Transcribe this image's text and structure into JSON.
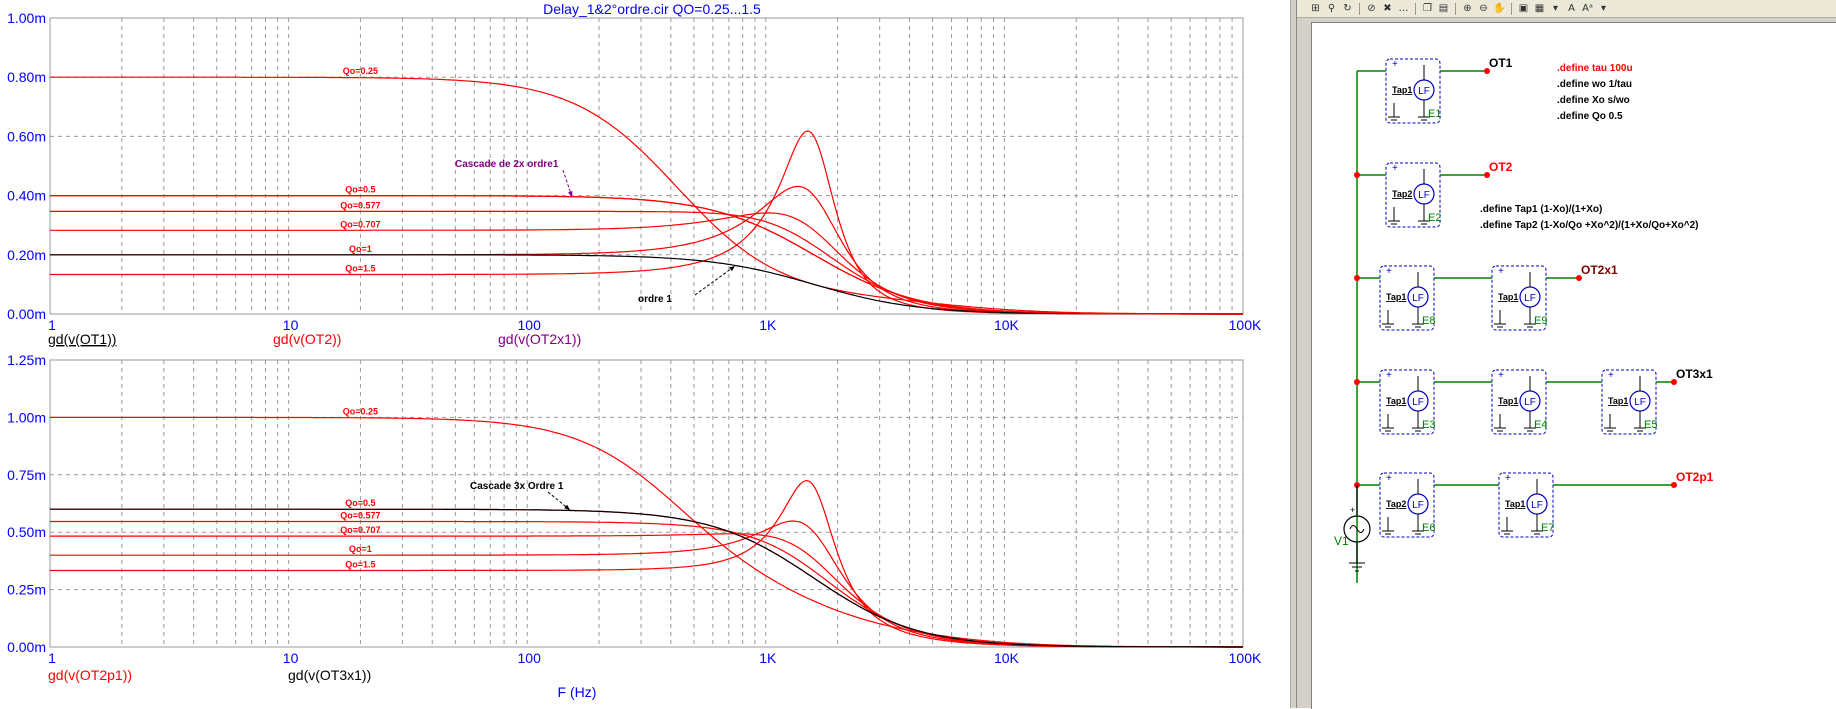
{
  "window": {
    "plot_title": "Delay_1&2°ordre.cir QO=0.25...1.5"
  },
  "colors": {
    "axis_text": "#0000ff",
    "trace_red": "#ff0000",
    "trace_black": "#000000",
    "annotation_purple": "#800080",
    "wire_green": "#008000",
    "subckt_blue": "#0000c0"
  },
  "plot_panes": {
    "top_traces": [
      "gd(v(OT1))",
      "gd(v(OT2))",
      "gd(v(OT2x1))"
    ],
    "bottom_traces": [
      "gd(v(OT2p1))",
      "gd(v(OT3x1))"
    ],
    "x_axis_label": "F (Hz)"
  },
  "chart_data": [
    {
      "type": "line",
      "title": "Delay_1&2°ordre.cir QO=0.25...1.5",
      "x_scale": "log",
      "xlim": [
        1,
        100000
      ],
      "ylim": [
        0,
        0.001
      ],
      "y_unit": "s",
      "x_ticks": [
        "1",
        "10",
        "100",
        "1K",
        "10K",
        "100K"
      ],
      "y_ticks": [
        "0.00m",
        "0.20m",
        "0.40m",
        "0.60m",
        "0.80m",
        "1.00m"
      ],
      "legend": [
        "gd(v(OT1))",
        "gd(v(OT2))",
        "gd(v(OT2x1))"
      ],
      "curves": [
        {
          "label": "Qo=0.25",
          "kind": "second-order",
          "tau": 0.0001,
          "Q": 0.25,
          "n": 1
        },
        {
          "label": "Qo=0.5",
          "kind": "second-order",
          "tau": 0.0001,
          "Q": 0.5,
          "n": 1
        },
        {
          "label": "Qo=0.577",
          "kind": "second-order",
          "tau": 0.0001,
          "Q": 0.577,
          "n": 1
        },
        {
          "label": "Qo=0.707",
          "kind": "second-order",
          "tau": 0.0001,
          "Q": 0.707,
          "n": 1
        },
        {
          "label": "Qo=1",
          "kind": "second-order",
          "tau": 0.0001,
          "Q": 1,
          "n": 1
        },
        {
          "label": "Qo=1.5",
          "kind": "second-order",
          "tau": 0.0001,
          "Q": 1.5,
          "n": 1
        },
        {
          "label": "ordre 1",
          "kind": "first-order",
          "tau": 0.0001,
          "n": 1,
          "color": "black"
        },
        {
          "label": "Cascade de 2x ordre1",
          "kind": "first-order",
          "tau": 0.0001,
          "n": 2,
          "color": "red"
        }
      ],
      "annotations": [
        "Cascade de 2x ordre1",
        "ordre 1"
      ]
    },
    {
      "type": "line",
      "x_scale": "log",
      "xlim": [
        1,
        100000
      ],
      "ylim": [
        0,
        0.00125
      ],
      "y_unit": "s",
      "x_ticks": [
        "1",
        "10",
        "100",
        "1K",
        "10K",
        "100K"
      ],
      "y_ticks": [
        "0.00m",
        "0.25m",
        "0.50m",
        "0.75m",
        "1.00m",
        "1.25m"
      ],
      "xlabel": "F (Hz)",
      "legend": [
        "gd(v(OT2p1))",
        "gd(v(OT3x1))"
      ],
      "curves": [
        {
          "label": "Qo=0.25",
          "kind": "second-plus-first",
          "tau": 0.0001,
          "Q": 0.25
        },
        {
          "label": "Qo=0.5",
          "kind": "second-plus-first",
          "tau": 0.0001,
          "Q": 0.5
        },
        {
          "label": "Qo=0.577",
          "kind": "second-plus-first",
          "tau": 0.0001,
          "Q": 0.577
        },
        {
          "label": "Qo=0.707",
          "kind": "second-plus-first",
          "tau": 0.0001,
          "Q": 0.707
        },
        {
          "label": "Qo=1",
          "kind": "second-plus-first",
          "tau": 0.0001,
          "Q": 1
        },
        {
          "label": "Qo=1.5",
          "kind": "second-plus-first",
          "tau": 0.0001,
          "Q": 1.5
        },
        {
          "label": "Cascade 3x Ordre 1",
          "kind": "first-order",
          "tau": 0.0001,
          "n": 3,
          "color": "black"
        }
      ],
      "annotations": [
        "Cascade 3x Ordre 1"
      ]
    }
  ],
  "schematic": {
    "toolbar_icons": [
      "zoom-fit-icon",
      "binoculars-icon",
      "refresh-icon",
      "halt-icon",
      "delete-icon",
      "ellipsis-icon",
      "copy-icon",
      "paste-icon",
      "zoom-in-icon",
      "zoom-out-icon",
      "pan-icon",
      "print-icon",
      "grid-icon",
      "text-icon",
      "label-icon"
    ],
    "toolbar_text": [
      "A",
      "Aᵃ"
    ],
    "defines_red": ".define tau 100u",
    "defines": [
      ".define wo 1/tau",
      ".define Xo s/wo",
      ".define Qo 0.5"
    ],
    "tap_defines": [
      ".define Tap1 (1-Xo)/(1+Xo)",
      ".define Tap2  (1-Xo/Qo +Xo^2)/(1+Xo/Qo+Xo^2)"
    ],
    "nets": {
      "OT1": "OT1",
      "OT2": "OT2",
      "OT2x1": "OT2x1",
      "OT3x1": "OT3x1",
      "OT2p1": "OT2p1"
    },
    "source": {
      "name": "V1"
    },
    "blocks": [
      {
        "tap": "Tap1",
        "src": "LF",
        "name": "E1"
      },
      {
        "tap": "Tap2",
        "src": "LF",
        "name": "E2"
      },
      {
        "tap": "Tap1",
        "src": "LF",
        "name": "E8"
      },
      {
        "tap": "Tap1",
        "src": "LF",
        "name": "E9"
      },
      {
        "tap": "Tap1",
        "src": "LF",
        "name": "E3"
      },
      {
        "tap": "Tap1",
        "src": "LF",
        "name": "E4"
      },
      {
        "tap": "Tap1",
        "src": "LF",
        "name": "E5"
      },
      {
        "tap": "Tap2",
        "src": "LF",
        "name": "E6"
      },
      {
        "tap": "Tap1",
        "src": "LF",
        "name": "E7"
      }
    ]
  }
}
